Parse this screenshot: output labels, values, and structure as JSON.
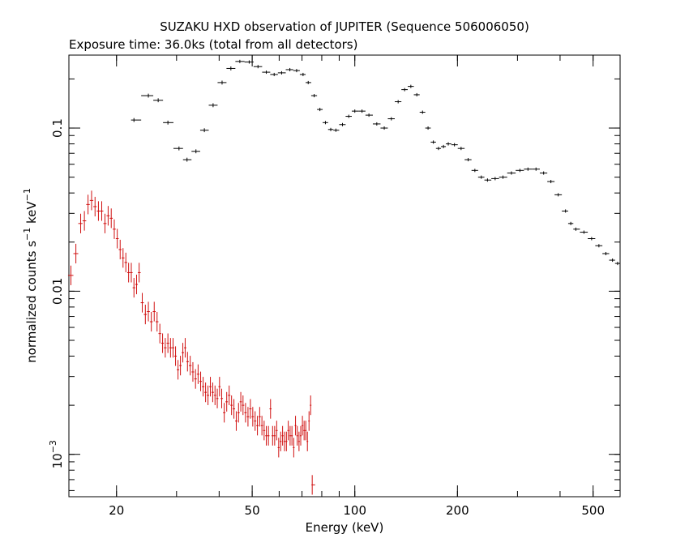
{
  "chart_data": {
    "type": "scatter",
    "title": "SUZAKU HXD observation of JUPITER (Sequence 506006050)",
    "subtitle": "Exposure time: 36.0ks (total from all detectors)",
    "xlabel": "Energy (keV)",
    "ylabel_main": "normalized counts s",
    "ylabel_mid": "  keV",
    "ylabel_sup": "−1",
    "xscale": "log",
    "yscale": "log",
    "xlim": [
      14.5,
      600
    ],
    "ylim": [
      0.00055,
      0.28
    ],
    "x_ticks": [
      {
        "value": 20,
        "label": "20"
      },
      {
        "value": 50,
        "label": "50"
      },
      {
        "value": 100,
        "label": "100"
      },
      {
        "value": 200,
        "label": "200"
      },
      {
        "value": 500,
        "label": "500"
      }
    ],
    "y_ticks": [
      {
        "value": 0.1,
        "label": "0.1"
      },
      {
        "value": 0.01,
        "label": "0.01"
      },
      {
        "value": 0.001,
        "label": "10",
        "sup": "−3"
      }
    ],
    "grid": false,
    "series": [
      {
        "color": "#000000",
        "points": [
          [
            22.5,
            0.112
          ],
          [
            24.8,
            0.158
          ],
          [
            26.5,
            0.148
          ],
          [
            28.3,
            0.108
          ],
          [
            30.5,
            0.075
          ],
          [
            32.2,
            0.064
          ],
          [
            34.2,
            0.072
          ],
          [
            36.2,
            0.097
          ],
          [
            38.4,
            0.138
          ],
          [
            40.8,
            0.19
          ],
          [
            43.3,
            0.232
          ],
          [
            46,
            0.256
          ],
          [
            49,
            0.254
          ],
          [
            52,
            0.238
          ],
          [
            55,
            0.22
          ],
          [
            58,
            0.213
          ],
          [
            61,
            0.218
          ],
          [
            64.5,
            0.228
          ],
          [
            67.5,
            0.225
          ],
          [
            70.5,
            0.213
          ],
          [
            73,
            0.19
          ],
          [
            76,
            0.158
          ],
          [
            79,
            0.13
          ],
          [
            82,
            0.108
          ],
          [
            85,
            0.098
          ],
          [
            88,
            0.097
          ],
          [
            92,
            0.105
          ],
          [
            96,
            0.118
          ],
          [
            100,
            0.127
          ],
          [
            105,
            0.127
          ],
          [
            110,
            0.12
          ],
          [
            116,
            0.106
          ],
          [
            122,
            0.1
          ],
          [
            128,
            0.114
          ],
          [
            134,
            0.145
          ],
          [
            140,
            0.172
          ],
          [
            146,
            0.18
          ],
          [
            152,
            0.16
          ],
          [
            158,
            0.125
          ],
          [
            164,
            0.1
          ],
          [
            170,
            0.082
          ],
          [
            176,
            0.075
          ],
          [
            182,
            0.077
          ],
          [
            188,
            0.08
          ],
          [
            196,
            0.079
          ],
          [
            205,
            0.075
          ],
          [
            215,
            0.064
          ],
          [
            225,
            0.055
          ],
          [
            235,
            0.05
          ],
          [
            245,
            0.048
          ],
          [
            258,
            0.049
          ],
          [
            272,
            0.05
          ],
          [
            288,
            0.053
          ],
          [
            305,
            0.055
          ],
          [
            322,
            0.056
          ],
          [
            340,
            0.056
          ],
          [
            358,
            0.053
          ],
          [
            376,
            0.047
          ],
          [
            395,
            0.039
          ],
          [
            415,
            0.031
          ],
          [
            430,
            0.026
          ],
          [
            445,
            0.024
          ],
          [
            470,
            0.023
          ],
          [
            495,
            0.021
          ],
          [
            520,
            0.019
          ],
          [
            545,
            0.017
          ],
          [
            570,
            0.0155
          ],
          [
            590,
            0.0148
          ]
        ]
      },
      {
        "color": "#d01010",
        "points": [
          [
            14.7,
            0.0125
          ],
          [
            15.2,
            0.017
          ],
          [
            15.7,
            0.026
          ],
          [
            16.1,
            0.027
          ],
          [
            16.5,
            0.034
          ],
          [
            16.9,
            0.036
          ],
          [
            17.3,
            0.033
          ],
          [
            17.7,
            0.031
          ],
          [
            18.1,
            0.031
          ],
          [
            18.5,
            0.026
          ],
          [
            18.9,
            0.029
          ],
          [
            19.3,
            0.028
          ],
          [
            19.7,
            0.024
          ],
          [
            20.1,
            0.021
          ],
          [
            20.5,
            0.018
          ],
          [
            20.9,
            0.016
          ],
          [
            21.3,
            0.015
          ],
          [
            21.7,
            0.013
          ],
          [
            22.1,
            0.013
          ],
          [
            22.5,
            0.0105
          ],
          [
            22.9,
            0.011
          ],
          [
            23.3,
            0.013
          ],
          [
            23.8,
            0.0085
          ],
          [
            24.3,
            0.0072
          ],
          [
            24.8,
            0.0075
          ],
          [
            25.3,
            0.0065
          ],
          [
            25.8,
            0.0075
          ],
          [
            26.3,
            0.0065
          ],
          [
            26.8,
            0.0055
          ],
          [
            27.3,
            0.0048
          ],
          [
            27.8,
            0.0045
          ],
          [
            28.3,
            0.0048
          ],
          [
            28.8,
            0.0045
          ],
          [
            29.3,
            0.0045
          ],
          [
            29.8,
            0.004
          ],
          [
            30.3,
            0.0033
          ],
          [
            30.8,
            0.0035
          ],
          [
            31.3,
            0.0042
          ],
          [
            31.8,
            0.0045
          ],
          [
            32.3,
            0.0037
          ],
          [
            32.9,
            0.0035
          ],
          [
            33.5,
            0.0032
          ],
          [
            34.1,
            0.0029
          ],
          [
            34.7,
            0.0031
          ],
          [
            35.3,
            0.0028
          ],
          [
            35.9,
            0.0026
          ],
          [
            36.5,
            0.0024
          ],
          [
            37.1,
            0.0023
          ],
          [
            37.7,
            0.0026
          ],
          [
            38.3,
            0.0024
          ],
          [
            38.9,
            0.0023
          ],
          [
            39.5,
            0.0022
          ],
          [
            40.1,
            0.0026
          ],
          [
            40.7,
            0.0022
          ],
          [
            41.4,
            0.0018
          ],
          [
            42.1,
            0.0021
          ],
          [
            42.8,
            0.0023
          ],
          [
            43.5,
            0.002
          ],
          [
            44.2,
            0.0019
          ],
          [
            44.9,
            0.0016
          ],
          [
            45.6,
            0.0018
          ],
          [
            46.3,
            0.0021
          ],
          [
            47,
            0.002
          ],
          [
            47.8,
            0.0018
          ],
          [
            48.6,
            0.0017
          ],
          [
            49.4,
            0.0019
          ],
          [
            50.2,
            0.0017
          ],
          [
            51,
            0.0016
          ],
          [
            51.8,
            0.0015
          ],
          [
            52.6,
            0.0017
          ],
          [
            53.4,
            0.0015
          ],
          [
            54.2,
            0.0014
          ],
          [
            55,
            0.0013
          ],
          [
            55.8,
            0.0013
          ],
          [
            56.6,
            0.0019
          ],
          [
            57.4,
            0.0013
          ],
          [
            58.2,
            0.0013
          ],
          [
            59,
            0.0014
          ],
          [
            59.8,
            0.0011
          ],
          [
            60.6,
            0.0012
          ],
          [
            61.4,
            0.0013
          ],
          [
            62.2,
            0.0012
          ],
          [
            63,
            0.0012
          ],
          [
            63.8,
            0.0014
          ],
          [
            64.6,
            0.0013
          ],
          [
            65.4,
            0.0013
          ],
          [
            66.2,
            0.0011
          ],
          [
            67,
            0.0015
          ],
          [
            67.8,
            0.0013
          ],
          [
            68.6,
            0.0012
          ],
          [
            69.4,
            0.0013
          ],
          [
            70.2,
            0.0015
          ],
          [
            71,
            0.0014
          ],
          [
            71.8,
            0.0014
          ],
          [
            72.6,
            0.0012
          ],
          [
            73.4,
            0.0016
          ],
          [
            74.2,
            0.002
          ],
          [
            75,
            0.00065
          ]
        ]
      }
    ]
  }
}
